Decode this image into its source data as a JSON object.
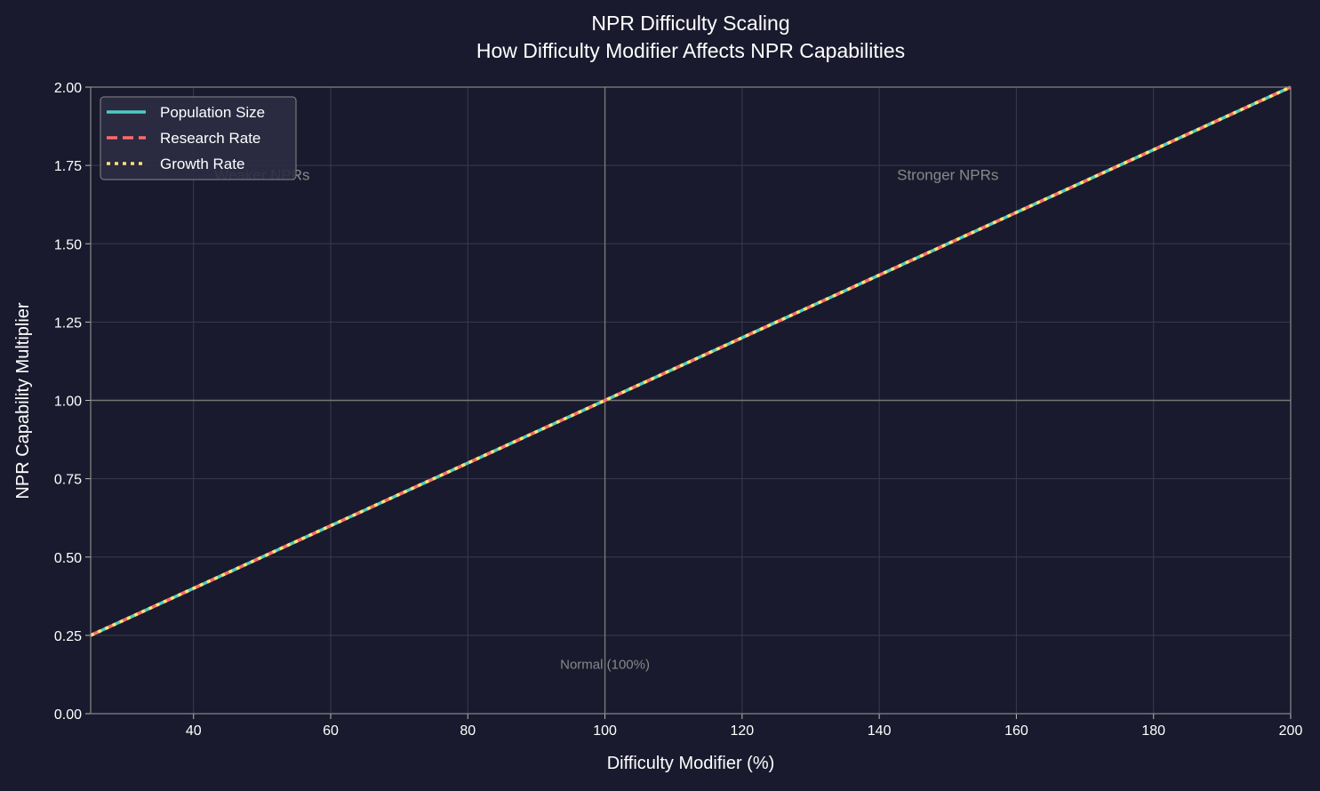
{
  "chart_data": {
    "type": "line",
    "title": "NPR Difficulty Scaling",
    "subtitle": "How Difficulty Modifier Affects NPR Capabilities",
    "xlabel": "Difficulty Modifier (%)",
    "ylabel": "NPR Capability Multiplier",
    "xlim": [
      25,
      200
    ],
    "ylim": [
      0,
      2.0
    ],
    "xticks": [
      40,
      60,
      80,
      100,
      120,
      140,
      160,
      180,
      200
    ],
    "yticks": [
      "0.00",
      "0.25",
      "0.50",
      "0.75",
      "1.00",
      "1.25",
      "1.50",
      "1.75",
      "2.00"
    ],
    "grid": true,
    "legend": "top-left",
    "series": [
      {
        "name": "Population Size",
        "x": [
          25,
          200
        ],
        "y": [
          0.25,
          2.0
        ],
        "color": "#4ECDC4",
        "style": "solid"
      },
      {
        "name": "Research Rate",
        "x": [
          25,
          200
        ],
        "y": [
          0.25,
          2.0
        ],
        "color": "#FF6B6B",
        "style": "dashed"
      },
      {
        "name": "Growth Rate",
        "x": [
          25,
          200
        ],
        "y": [
          0.25,
          2.0
        ],
        "color": "#FFE66D",
        "style": "dotted"
      }
    ],
    "reference_lines": {
      "vertical_x": 100,
      "horizontal_y": 1.0
    },
    "annotations": [
      {
        "text": "Weaker NPRs",
        "x": 50,
        "y": 1.72
      },
      {
        "text": "Stronger NPRs",
        "x": 150,
        "y": 1.72
      },
      {
        "text": "Normal (100%)",
        "x": 100,
        "y": 0.16
      }
    ]
  },
  "colors": {
    "background": "#1a1a2e",
    "text": "#ffffff",
    "grid": "#3a3a4e"
  }
}
